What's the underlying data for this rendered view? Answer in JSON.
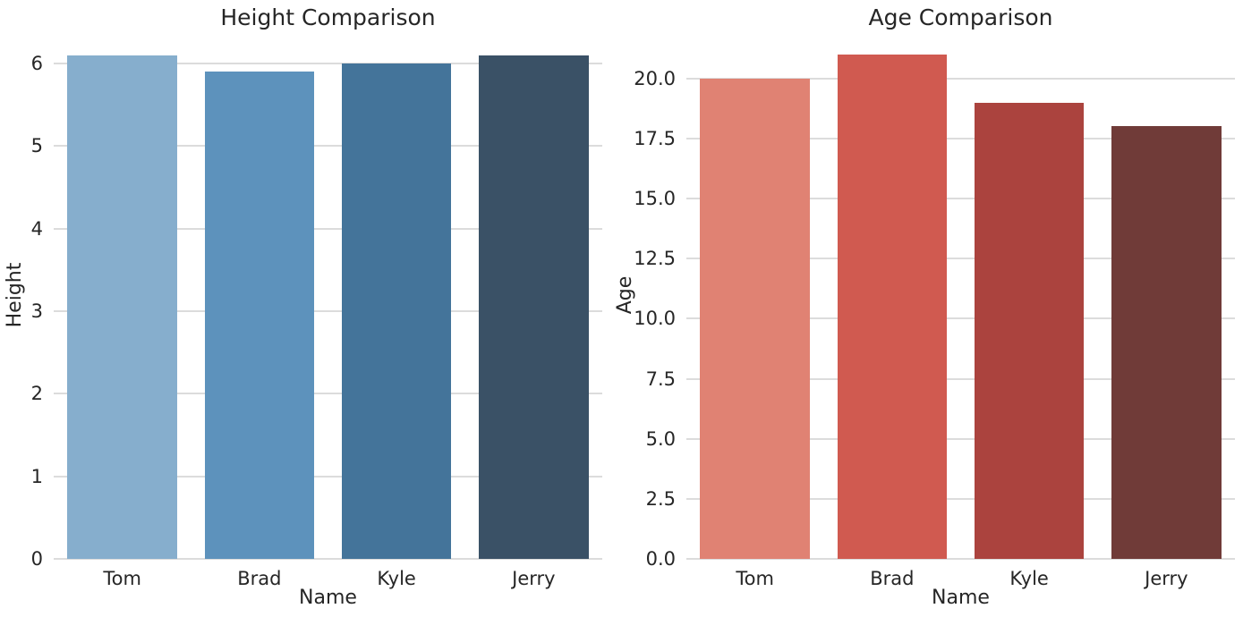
{
  "figure_background": "#ffffff",
  "text_color": "#262626",
  "grid_color": "#dcdcdc",
  "chart_data": [
    {
      "type": "bar",
      "title": "Height Comparison",
      "xlabel": "Name",
      "ylabel": "Height",
      "categories": [
        "Tom",
        "Brad",
        "Kyle",
        "Jerry"
      ],
      "values": [
        6.1,
        5.9,
        6.0,
        6.1
      ],
      "bar_colors": [
        "#86aecd",
        "#5d92bc",
        "#44749a",
        "#3a5166"
      ],
      "yticks": [
        0,
        1,
        2,
        3,
        4,
        5,
        6
      ],
      "ytick_labels": [
        "0",
        "1",
        "2",
        "3",
        "4",
        "5",
        "6"
      ],
      "ylim": [
        0,
        6.4
      ],
      "grid": true,
      "legend": null
    },
    {
      "type": "bar",
      "title": "Age Comparison",
      "xlabel": "Name",
      "ylabel": "Age",
      "categories": [
        "Tom",
        "Brad",
        "Kyle",
        "Jerry"
      ],
      "values": [
        20,
        21,
        19,
        18
      ],
      "bar_colors": [
        "#e08273",
        "#d05a50",
        "#ab433e",
        "#703b38"
      ],
      "yticks": [
        0,
        2.5,
        5,
        7.5,
        10,
        12.5,
        15,
        17.5,
        20
      ],
      "ytick_labels": [
        "0.0",
        "2.5",
        "5.0",
        "7.5",
        "10.0",
        "12.5",
        "15.0",
        "17.5",
        "20.0"
      ],
      "ylim": [
        0,
        22
      ],
      "grid": true,
      "legend": null
    }
  ]
}
